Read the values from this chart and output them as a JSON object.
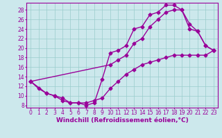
{
  "xlabel": "Windchill (Refroidissement éolien,°C)",
  "xlim": [
    -0.5,
    23.5
  ],
  "ylim": [
    7.5,
    29.5
  ],
  "yticks": [
    8,
    10,
    12,
    14,
    16,
    18,
    20,
    22,
    24,
    26,
    28
  ],
  "xticks": [
    0,
    1,
    2,
    3,
    4,
    5,
    6,
    7,
    8,
    9,
    10,
    11,
    12,
    13,
    14,
    15,
    16,
    17,
    18,
    19,
    20,
    21,
    22,
    23
  ],
  "background_color": "#cce8ec",
  "grid_color": "#99cccc",
  "line_color": "#990099",
  "curve1_x": [
    0,
    1,
    2,
    3,
    4,
    5,
    6,
    7,
    8,
    9,
    10,
    11,
    12,
    13,
    14,
    15,
    16,
    17,
    18,
    19,
    20,
    21,
    22,
    23
  ],
  "curve1_y": [
    13,
    11.5,
    10.5,
    10.0,
    9.0,
    8.5,
    8.5,
    8.0,
    8.5,
    13.5,
    19.0,
    19.5,
    20.5,
    24.0,
    24.5,
    27.0,
    27.5,
    29.0,
    29.0,
    28.0,
    25.0,
    23.5,
    20.5,
    19.5
  ],
  "curve2_x": [
    0,
    2,
    3,
    4,
    5,
    6,
    7,
    8,
    9,
    10,
    11,
    12,
    13,
    14,
    15,
    16,
    17,
    18,
    19,
    20,
    21,
    22,
    23
  ],
  "curve2_y": [
    13,
    10.5,
    10.0,
    9.5,
    8.5,
    8.5,
    8.5,
    9.0,
    9.5,
    11.5,
    13.0,
    14.5,
    15.5,
    16.5,
    17.0,
    17.5,
    18.0,
    18.5,
    18.5,
    18.5,
    18.5,
    18.5,
    19.5
  ],
  "curve3_x": [
    0,
    10,
    11,
    12,
    13,
    14,
    15,
    16,
    17,
    18,
    19,
    20,
    21,
    22,
    23
  ],
  "curve3_y": [
    13,
    16.5,
    17.5,
    18.5,
    21.0,
    22.0,
    24.5,
    26.0,
    27.5,
    28.0,
    28.0,
    24.0,
    23.5,
    20.5,
    19.5
  ],
  "marker": "D",
  "marker_size": 2.5,
  "linewidth": 1.0,
  "tick_fontsize": 5.5,
  "xlabel_fontsize": 6.5
}
